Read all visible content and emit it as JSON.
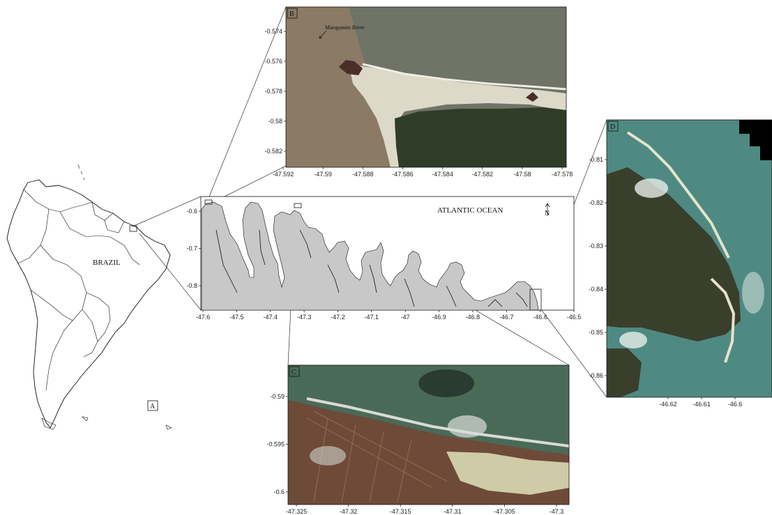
{
  "overview_map": {
    "panel_label": "A",
    "country_label": "BRAZIL"
  },
  "coast_map": {
    "ocean_label": "ATLANTIC OCEAN",
    "north_label": "N",
    "x_ticks": [
      "-47.6",
      "-47.5",
      "-47.4",
      "-47.3",
      "-47.2",
      "-47.1",
      "-47",
      "-46.9",
      "-46.8",
      "-46.7",
      "-46.6",
      "-46.5"
    ],
    "y_ticks": [
      "-0.6",
      "-0.7",
      "-0.8"
    ]
  },
  "inset_b": {
    "panel_label": "B",
    "annotation": "Marapanim River",
    "x_ticks": [
      "-47.592",
      "-47.59",
      "-47.588",
      "-47.586",
      "-47.584",
      "-47.582",
      "-47.58",
      "-47.578"
    ],
    "y_ticks": [
      "-0.574",
      "-0.576",
      "-0.578",
      "-0.58",
      "-0.582"
    ]
  },
  "inset_c": {
    "panel_label": "C",
    "x_ticks": [
      "-47.325",
      "-47.32",
      "-47.315",
      "-47.31",
      "-47.305",
      "-47.3"
    ],
    "y_ticks": [
      "-0.59",
      "-0.595",
      "-0.6"
    ]
  },
  "inset_d": {
    "panel_label": "D",
    "x_ticks": [
      "-46.62",
      "-46.61",
      "-46.6"
    ],
    "y_ticks": [
      "-0.81",
      "-0.82",
      "-0.83",
      "-0.84",
      "-0.85",
      "-0.86"
    ]
  },
  "colors": {
    "land_fill": "#c8c8c8",
    "ocean_b": "#6f7466",
    "river_b": "#8a7a66",
    "sand": "#ddd9c8",
    "vegetation": "#2f3d28",
    "ocean_c": "#4a6a58",
    "urban_c": "#6e4a38",
    "ocean_d": "#4e8a82",
    "forest_d": "#3a3f2c"
  }
}
